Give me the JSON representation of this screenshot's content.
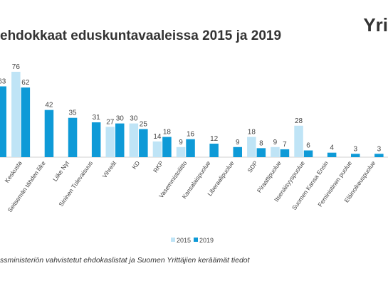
{
  "chart_data": {
    "type": "bar",
    "title": "ehdokkaat eduskuntavaaleissa 2015 ja 2019",
    "logo": "Yri",
    "source": "ssministeriön vahvistetut ehdokaslistat ja Suomen Yrittäjien keräämät tiedot",
    "categories": [
      null,
      "Keskusta",
      "Seitsemän tähden liike",
      "Liike Nyt",
      "Sininen Tulevaisuus",
      "Vihreät",
      "KD",
      "RKP",
      "Vasemmistoliitto",
      "Kansalaispuolue",
      "Liberaalipuolue",
      "SDP",
      "Piraattipuolue",
      "Itsenäisyyspuolue",
      "Suomen Kansa Ensin",
      "Feministinen puolue",
      "Eläinoikeuspuolue"
    ],
    "series": [
      {
        "name": "2015",
        "color": "#bfe4f6",
        "values": [
          null,
          76,
          null,
          null,
          null,
          27,
          30,
          14,
          9,
          null,
          null,
          18,
          9,
          28,
          null,
          null,
          null
        ]
      },
      {
        "name": "2019",
        "color": "#0e9ad7",
        "values": [
          63,
          62,
          42,
          35,
          31,
          30,
          25,
          18,
          16,
          12,
          9,
          8,
          7,
          6,
          4,
          3,
          3
        ]
      }
    ]
  }
}
